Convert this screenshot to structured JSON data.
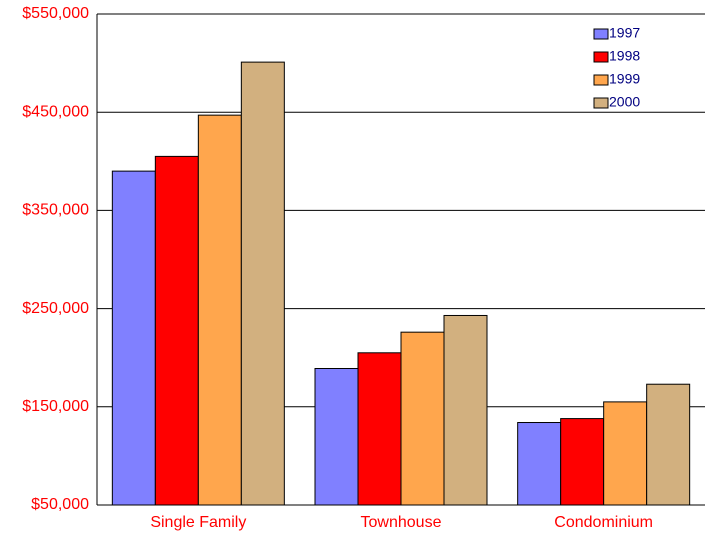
{
  "chart_data": {
    "type": "bar",
    "categories": [
      "Single Family",
      "Townhouse",
      "Condominium"
    ],
    "series": [
      {
        "name": "1997",
        "color": "#8080ff",
        "values": [
          390000,
          189000,
          134000
        ]
      },
      {
        "name": "1998",
        "color": "#ff0000",
        "values": [
          405000,
          205000,
          138000
        ]
      },
      {
        "name": "1999",
        "color": "#ffa64d",
        "values": [
          447000,
          226000,
          155000
        ]
      },
      {
        "name": "2000",
        "color": "#d2b07f",
        "values": [
          501000,
          243000,
          173000
        ]
      }
    ],
    "ylim": [
      50000,
      550000
    ],
    "yticks": [
      {
        "value": 50000,
        "label": "$50,000"
      },
      {
        "value": 150000,
        "label": "$150,000"
      },
      {
        "value": 250000,
        "label": "$250,000"
      },
      {
        "value": 350000,
        "label": "$350,000"
      },
      {
        "value": 450000,
        "label": "$450,000"
      },
      {
        "value": 550000,
        "label": "$550,000"
      }
    ],
    "grid": true,
    "legend": "top-right"
  }
}
